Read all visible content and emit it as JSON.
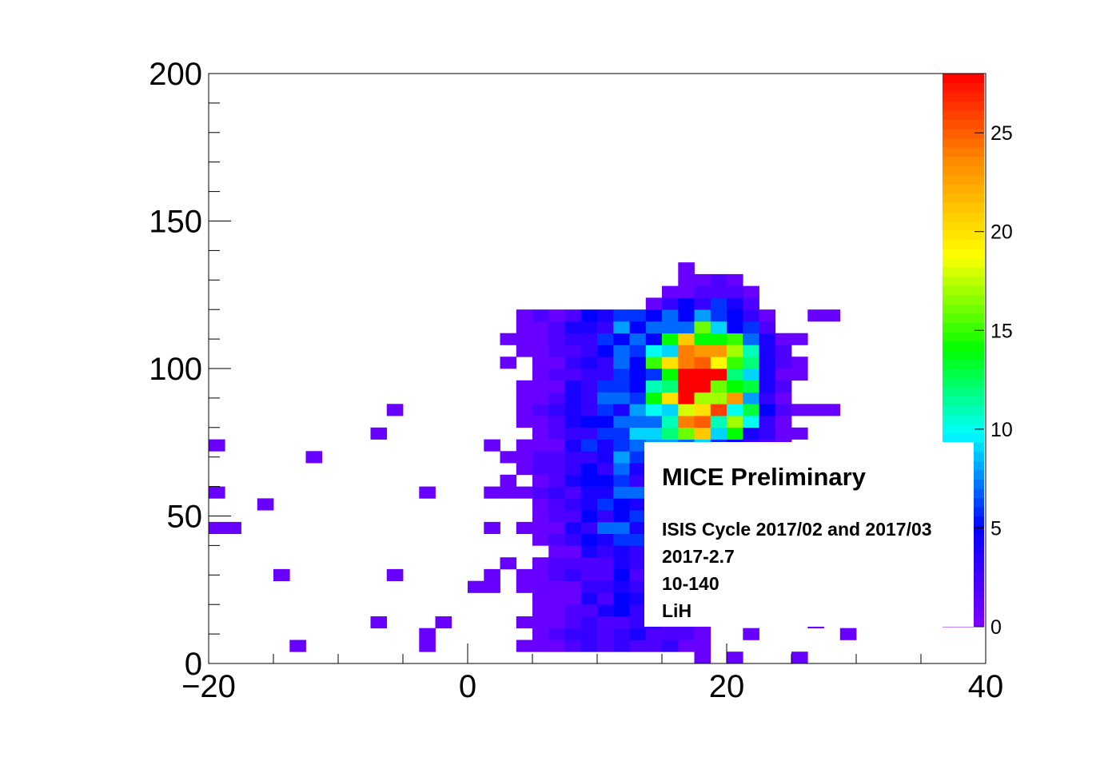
{
  "chart_data": {
    "type": "heatmap",
    "title": "",
    "xlabel": "",
    "ylabel": "",
    "xlim": [
      -20,
      40
    ],
    "ylim": [
      0,
      200
    ],
    "x_ticks": [
      "−20",
      "0",
      "20",
      "40"
    ],
    "y_ticks": [
      "0",
      "50",
      "100",
      "150",
      "200"
    ],
    "z_range": [
      0,
      28
    ],
    "z_ticks": [
      "0",
      "5",
      "10",
      "15",
      "20",
      "25"
    ],
    "bin_width": [
      1.25,
      4.0
    ],
    "cluster_core": {
      "x": 18.5,
      "y": 95,
      "sigma_x": 2.5,
      "sigma_y": 14,
      "peak": 28
    },
    "band_tail": {
      "x_center": 12,
      "x_sigma": 3.5,
      "y_range": [
        5,
        120
      ]
    }
  },
  "legend_box": {
    "title": "MICE Preliminary",
    "lines": [
      "ISIS Cycle 2017/02 and 2017/03",
      "2017-2.7",
      "10-140",
      "LiH"
    ]
  }
}
